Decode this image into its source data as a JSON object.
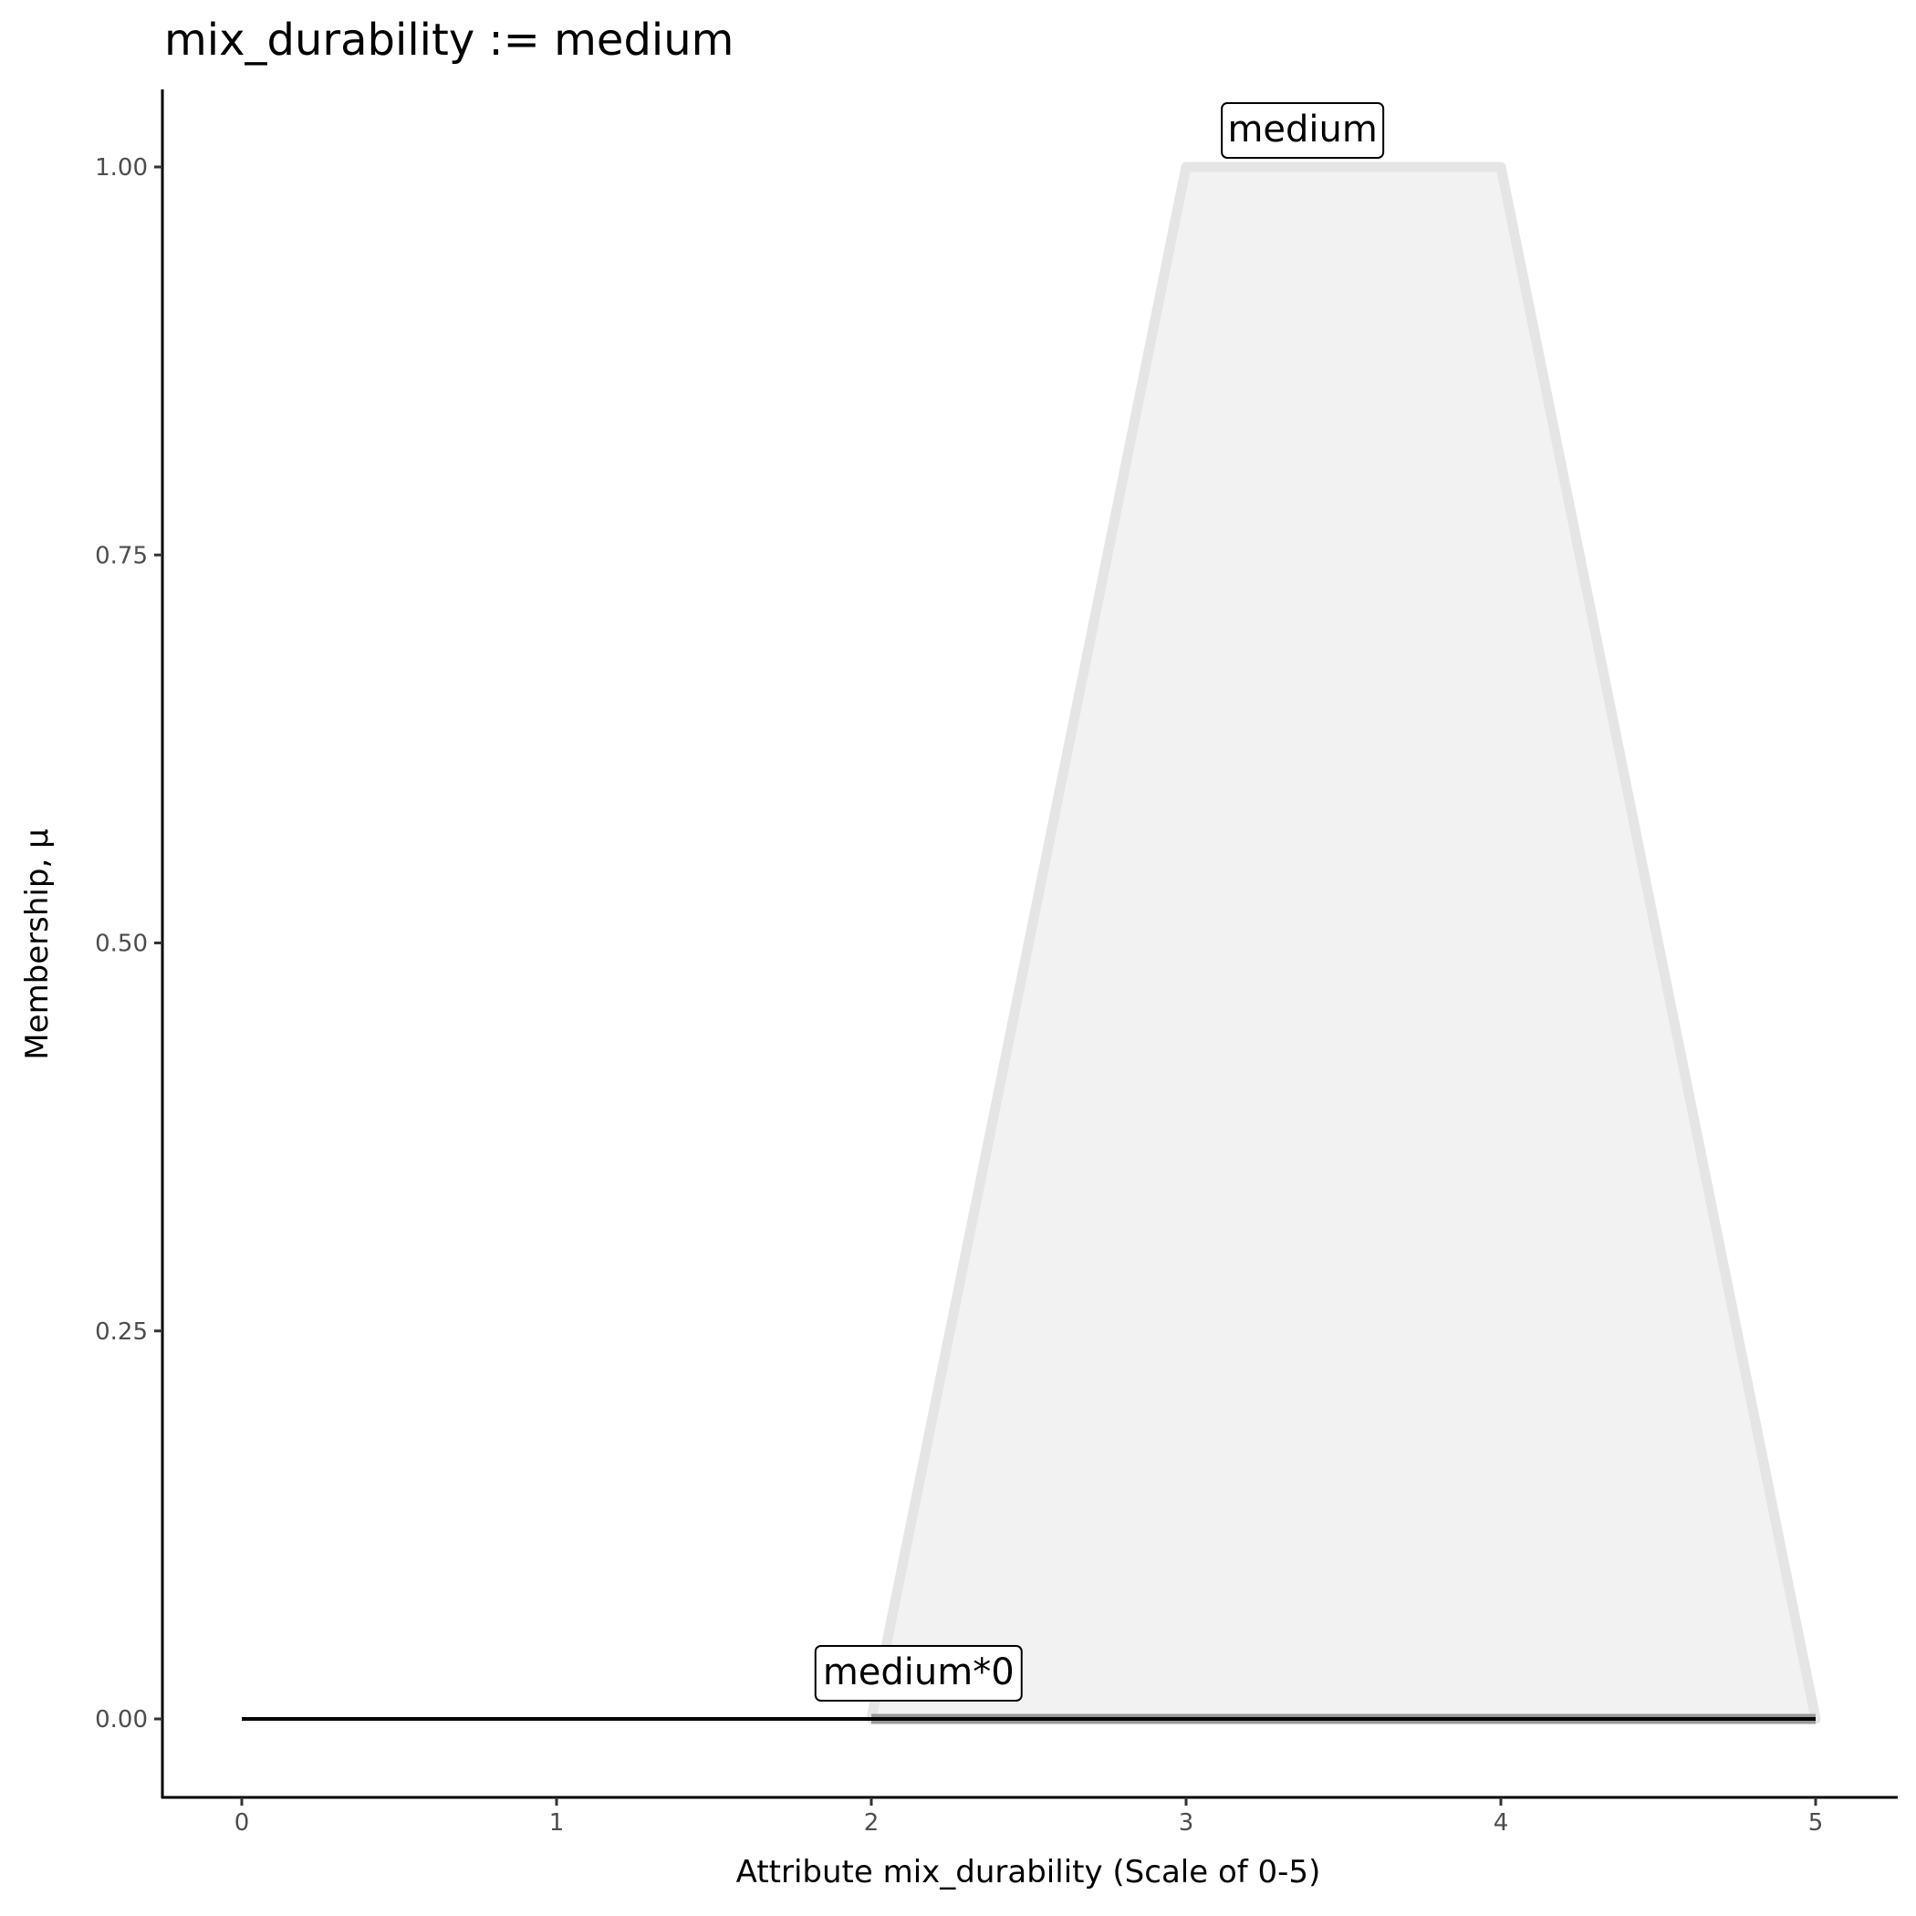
{
  "chart_data": {
    "type": "area",
    "title": "mix_durability := medium",
    "xlabel": "Attribute mix_durability (Scale of 0-5)",
    "ylabel": "Membership, μ",
    "xlim": [
      -0.25,
      5.25
    ],
    "ylim": [
      -0.05,
      1.05
    ],
    "x_ticks": [
      0,
      1,
      2,
      3,
      4,
      5
    ],
    "x_tick_labels": [
      "0",
      "1",
      "2",
      "3",
      "4",
      "5"
    ],
    "y_ticks": [
      0,
      0.25,
      0.5,
      0.75,
      1.0
    ],
    "y_tick_labels": [
      "0.00",
      "0.25",
      "0.50",
      "0.75",
      "1.00"
    ],
    "grid": false,
    "series": [
      {
        "name": "medium",
        "x": [
          2,
          3,
          4,
          5
        ],
        "y": [
          0,
          1,
          1,
          0
        ],
        "fill": "#f2f2f2",
        "stroke": "#e5e5e5"
      },
      {
        "name": "medium*0",
        "x": [
          2,
          3,
          4,
          5
        ],
        "y": [
          0,
          0,
          0,
          0
        ],
        "fill": "#f2f2f2",
        "stroke": "#999999"
      },
      {
        "x": [
          0,
          5
        ],
        "y": [
          0,
          0
        ],
        "stroke": "#000000"
      }
    ],
    "annotations": [
      {
        "text": "medium",
        "x": 3.37,
        "y": 1.0
      },
      {
        "text": "medium*0",
        "x": 2.15,
        "y": 0.0
      }
    ]
  }
}
